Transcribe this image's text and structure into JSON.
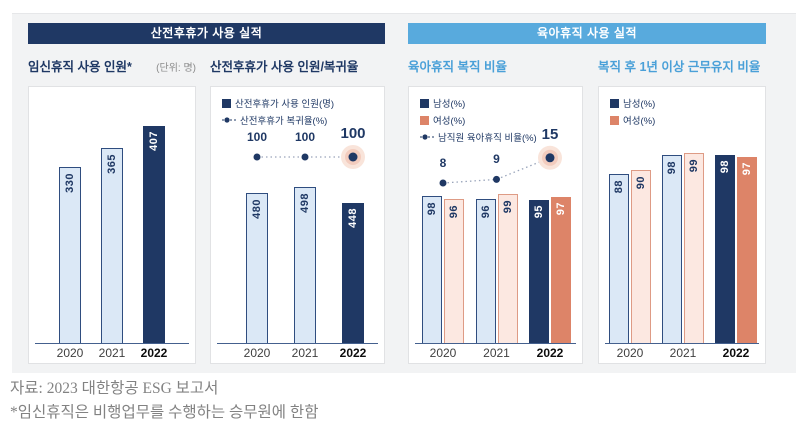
{
  "colors": {
    "navy": "#1f3864",
    "header_blue": "#58aadd",
    "title_blue": "#4aa0d8",
    "light_blue_fill": "#dbe8f6",
    "light_blue_border": "#2f4d7f",
    "pink_fill": "#fce8e1",
    "pink_border": "#de9b85",
    "coral": "#dd8468",
    "panel_gray": "#f2f3f4",
    "dotted_line": "#9aa5bb",
    "halo_outer": "#f9e4da",
    "halo_inner": "#f0c4b4",
    "footer_text": "#828282"
  },
  "sections": [
    {
      "title": "산전후휴가 사용 실적"
    },
    {
      "title": "육아휴직 사용 실적"
    }
  ],
  "footer": {
    "line1": "자료: 2023 대한항공 ESG 보고서",
    "line2": "*임신휴직은 비행업무를 수행하는 승무원에 한함"
  },
  "chart_data": [
    {
      "type": "bar",
      "title": "임신휴직 사용 인원*",
      "unit_note": "(단위: 명)",
      "categories": [
        "2020",
        "2021",
        "2022"
      ],
      "values": [
        330,
        365,
        407
      ],
      "highlight_category": "2022",
      "ylim": [
        0,
        450
      ],
      "grid": false,
      "legend_position": "none"
    },
    {
      "type": "bar",
      "title": "산전후휴가 사용 인원/복귀율",
      "categories": [
        "2020",
        "2021",
        "2022"
      ],
      "bar_series": {
        "name": "산전후휴가 사용 인원(명)",
        "values": [
          480,
          498,
          448
        ]
      },
      "line_series": {
        "name": "산전후휴가 복귀율(%)",
        "values": [
          100,
          100,
          100
        ]
      },
      "highlight_category": "2022",
      "grid": false,
      "legend_position": "top-left"
    },
    {
      "type": "bar",
      "title": "육아휴직 복직 비율",
      "categories": [
        "2020",
        "2021",
        "2022"
      ],
      "series": [
        {
          "name": "남성(%)",
          "values": [
            98,
            96,
            95
          ]
        },
        {
          "name": "여성(%)",
          "values": [
            96,
            99,
            97
          ]
        }
      ],
      "line_series": {
        "name": "남직원 육아휴직 비율(%)",
        "values": [
          8,
          9,
          15
        ]
      },
      "highlight_category": "2022",
      "grid": false,
      "legend_position": "top-left"
    },
    {
      "type": "bar",
      "title": "복직 후 1년 이상 근무유지 비율",
      "categories": [
        "2020",
        "2021",
        "2022"
      ],
      "series": [
        {
          "name": "남성(%)",
          "values": [
            88,
            98,
            98
          ]
        },
        {
          "name": "여성(%)",
          "values": [
            90,
            99,
            97
          ]
        }
      ],
      "highlight_category": "2022",
      "grid": false,
      "legend_position": "top-left"
    }
  ]
}
